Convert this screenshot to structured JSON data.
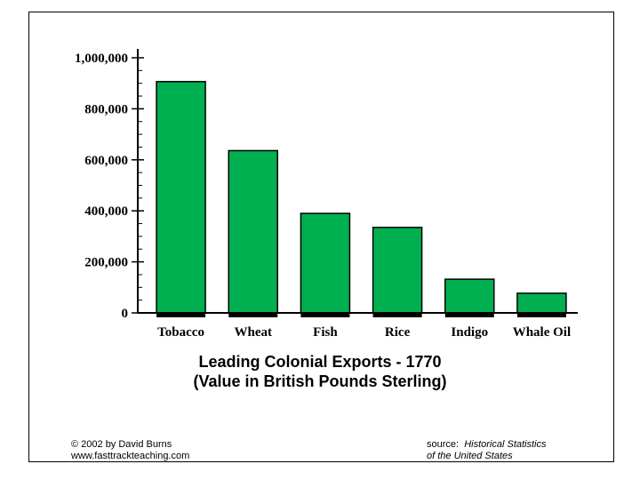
{
  "chart_data": {
    "type": "bar",
    "categories": [
      "Tobacco",
      "Wheat",
      "Fish",
      "Rice",
      "Indigo",
      "Whale Oil"
    ],
    "values": [
      906638,
      636000,
      390000,
      335000,
      132000,
      77000
    ],
    "title": "Leading Colonial Exports - 1770",
    "subtitle": "(Value in British Pounds Sterling)",
    "xlabel": "",
    "ylabel": "",
    "ylim": [
      0,
      1000000
    ],
    "yticks": [
      0,
      200000,
      400000,
      600000,
      800000,
      1000000
    ],
    "ytick_labels": [
      "0",
      "200,000",
      "400,000",
      "600,000",
      "800,000",
      "1,000,000"
    ],
    "bar_color": "#00b050",
    "grid": false,
    "legend": "none"
  },
  "footer": {
    "copyright": "© 2002 by David Burns",
    "website": "www.fasttrackteaching.com",
    "source_prefix": "source:",
    "source_title_line1": "Historical Statistics",
    "source_title_line2": "of the United States"
  }
}
